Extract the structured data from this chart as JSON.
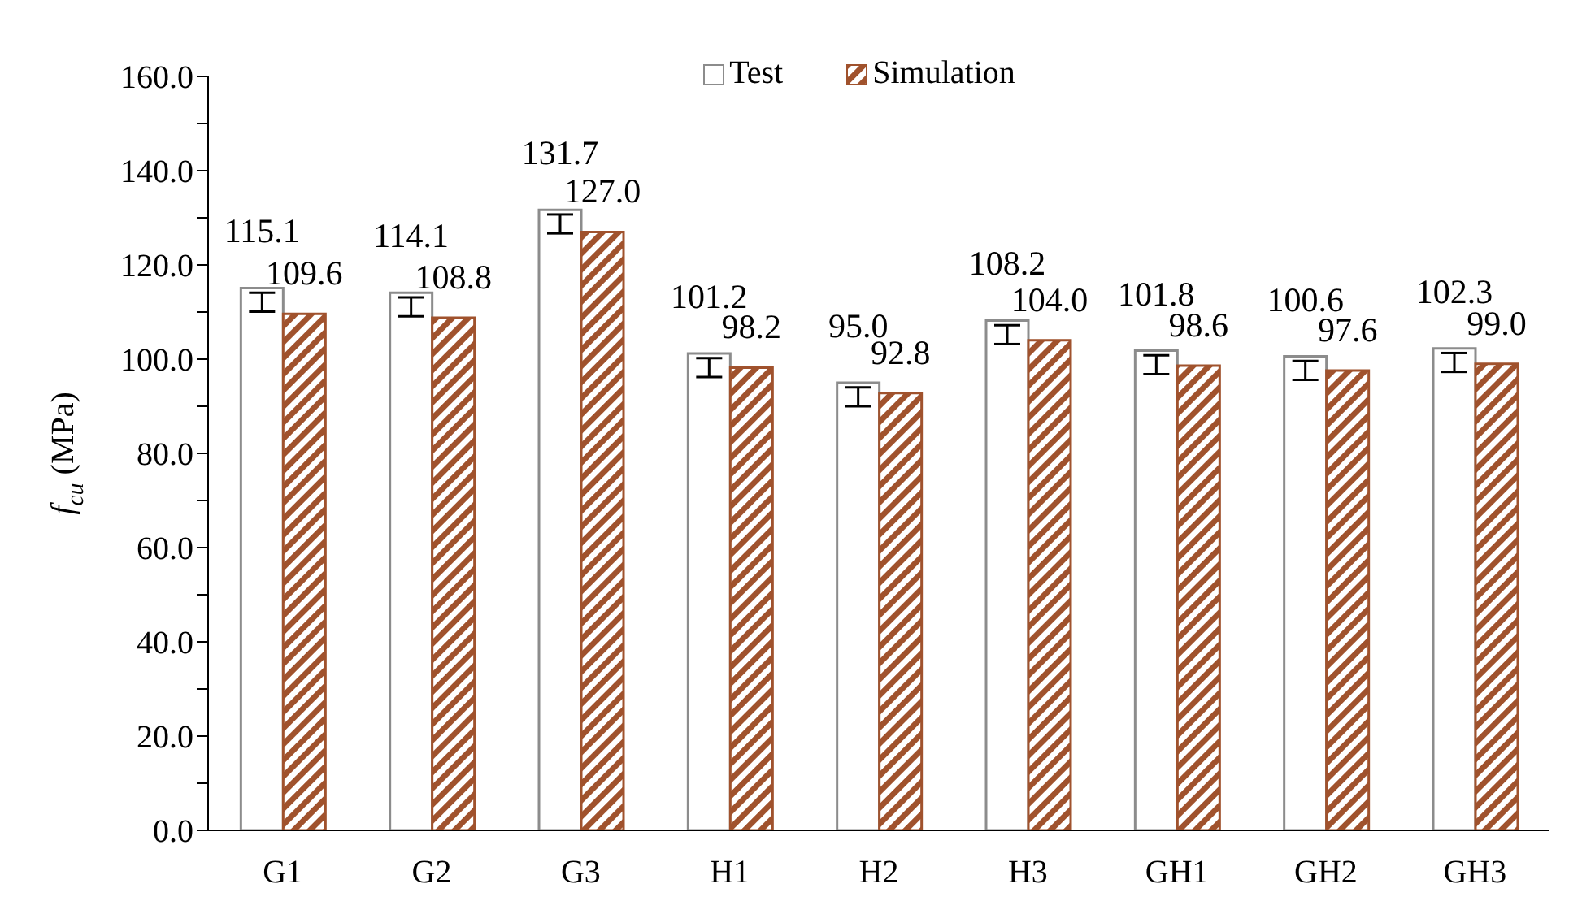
{
  "chart_data": {
    "type": "bar",
    "ylabel": "f$_{cu}$ (MPa)",
    "categories": [
      "G1",
      "G2",
      "G3",
      "H1",
      "H2",
      "H3",
      "GH1",
      "GH2",
      "GH3"
    ],
    "series": [
      {
        "name": "Test",
        "color": "#ffffff",
        "values": [
          115.1,
          114.1,
          131.7,
          101.2,
          95.0,
          108.2,
          101.8,
          100.6,
          102.3
        ],
        "value_labels": [
          "115.1",
          "114.1",
          "131.7",
          "101.2",
          "95.0",
          "108.2",
          "101.8",
          "100.6",
          "102.3"
        ],
        "errors": [
          [
            110.1,
            114.1
          ],
          [
            109.1,
            113.1
          ],
          [
            126.7,
            130.7
          ],
          [
            96.2,
            100.2
          ],
          [
            90.0,
            94.0
          ],
          [
            103.2,
            107.2
          ],
          [
            96.8,
            100.8
          ],
          [
            95.6,
            99.6
          ],
          [
            97.3,
            101.3
          ]
        ]
      },
      {
        "name": "Simulation",
        "color": "#a0522d",
        "values": [
          109.6,
          108.8,
          127.0,
          98.2,
          92.8,
          104.0,
          98.6,
          97.6,
          99.0
        ],
        "value_labels": [
          "109.6",
          "108.8",
          "127.0",
          "98.2",
          "92.8",
          "104.0",
          "98.6",
          "97.6",
          "99.0"
        ]
      }
    ],
    "ylim": [
      0,
      160
    ],
    "yticks": [
      {
        "value": 0,
        "label": "0.0"
      },
      {
        "value": 10,
        "label": null
      },
      {
        "value": 20,
        "label": "20.0"
      },
      {
        "value": 30,
        "label": null
      },
      {
        "value": 40,
        "label": "40.0"
      },
      {
        "value": 50,
        "label": null
      },
      {
        "value": 60,
        "label": "60.0"
      },
      {
        "value": 70,
        "label": null
      },
      {
        "value": 80,
        "label": "80.0"
      },
      {
        "value": 90,
        "label": null
      },
      {
        "value": 100,
        "label": "100.0"
      },
      {
        "value": 110,
        "label": null
      },
      {
        "value": 120,
        "label": "120.0"
      },
      {
        "value": 130,
        "label": null
      },
      {
        "value": 140,
        "label": "140.0"
      },
      {
        "value": 150,
        "label": null
      },
      {
        "value": 160,
        "label": "160.0"
      }
    ],
    "legend": "top",
    "grid": false
  }
}
